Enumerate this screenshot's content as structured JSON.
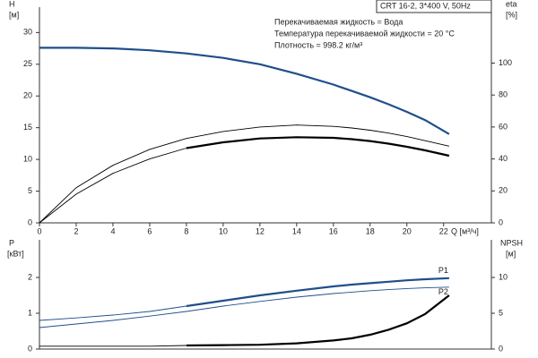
{
  "chart_data": [
    {
      "type": "line",
      "info_title": "CRT 16-2, 3*400 V, 50Hz",
      "info_lines": [
        "Перекачиваемая жидкость = Вода",
        "Температура перекачиваемой жидкости = 20 °C",
        "Плотность = 998.2 кг/м³"
      ],
      "y_label": "H",
      "y_unit": "[м]",
      "y2_label": "eta",
      "y2_unit": "[%]",
      "x_label": "Q [м³/ч]",
      "x": [
        0,
        2,
        4,
        6,
        8,
        10,
        12,
        14,
        16,
        17,
        18,
        19,
        20,
        21,
        22.3
      ],
      "xlim": [
        0,
        24.6
      ],
      "xticks": [
        0,
        2,
        4,
        6,
        8,
        10,
        12,
        14,
        16,
        18,
        20,
        22
      ],
      "ylim": [
        0,
        34
      ],
      "yticks": [
        0,
        5,
        10,
        15,
        20,
        25,
        30
      ],
      "y2lim": [
        0,
        135
      ],
      "y2ticks": [
        0,
        20,
        40,
        60,
        80,
        100
      ],
      "series": [
        {
          "color": "#1f4e8c",
          "thick": true,
          "values": [
            27.6,
            27.6,
            27.5,
            27.2,
            26.7,
            26.0,
            25.0,
            23.5,
            21.8,
            20.8,
            19.8,
            18.7,
            17.5,
            16.2,
            14.0
          ]
        },
        {
          "color": "#000000",
          "thick": false,
          "axis": "y2",
          "values": [
            0,
            22,
            36,
            46,
            52.8,
            57.2,
            60,
            61.2,
            60.4,
            59.4,
            58,
            56.2,
            54,
            51.4,
            48
          ]
        },
        {
          "color": "#000000",
          "thick": false,
          "axis": "y2",
          "values": [
            0,
            18,
            31,
            40,
            46.8,
            null,
            null,
            null,
            null,
            null,
            null,
            null,
            null,
            null,
            null
          ]
        },
        {
          "color": "#000000",
          "thick": true,
          "axis": "y2",
          "values": [
            null,
            null,
            null,
            null,
            46.8,
            50.4,
            52.8,
            53.6,
            53.2,
            52.4,
            51.2,
            49.6,
            47.6,
            45.4,
            42
          ]
        }
      ]
    },
    {
      "type": "line",
      "y_label": "P",
      "y_unit": "[кВт]",
      "y2_label": "NPSH",
      "y2_unit": "[м]",
      "x": [
        0,
        2,
        4,
        6,
        8,
        10,
        12,
        14,
        16,
        17,
        18,
        19,
        20,
        21,
        22.3
      ],
      "xlim": [
        0,
        24.6
      ],
      "ylim": [
        0,
        3.05
      ],
      "yticks": [
        0,
        1,
        2
      ],
      "y2lim": [
        0,
        15.25
      ],
      "y2ticks": [
        0,
        5,
        10
      ],
      "series": [
        {
          "color": "#1f4e8c",
          "thick": false,
          "values": [
            0.8,
            0.87,
            0.95,
            1.05,
            1.2,
            null,
            null,
            null,
            null,
            null,
            null,
            null,
            null,
            null,
            null
          ]
        },
        {
          "name": "P1",
          "label_position": "above",
          "color": "#1f4e8c",
          "thick": true,
          "values": [
            null,
            null,
            null,
            null,
            1.2,
            1.35,
            1.5,
            1.63,
            1.75,
            1.8,
            1.84,
            1.88,
            1.92,
            1.95,
            1.98
          ]
        },
        {
          "name": "P2",
          "label_position": "below",
          "color": "#1f4e8c",
          "thick": false,
          "values": [
            0.6,
            0.7,
            0.8,
            0.92,
            1.05,
            1.2,
            1.33,
            1.45,
            1.55,
            1.59,
            1.63,
            1.66,
            1.69,
            1.71,
            1.73
          ]
        },
        {
          "color": "#000000",
          "thick": false,
          "axis": "y2",
          "values": [
            0.4,
            0.4,
            0.4,
            0.4,
            0.5,
            null,
            null,
            null,
            null,
            null,
            null,
            null,
            null,
            null,
            null
          ]
        },
        {
          "color": "#000000",
          "thick": true,
          "axis": "y2",
          "values": [
            null,
            null,
            null,
            null,
            0.5,
            0.55,
            0.6,
            0.8,
            1.2,
            1.5,
            2,
            2.7,
            3.6,
            4.9,
            7.5
          ]
        }
      ]
    }
  ]
}
